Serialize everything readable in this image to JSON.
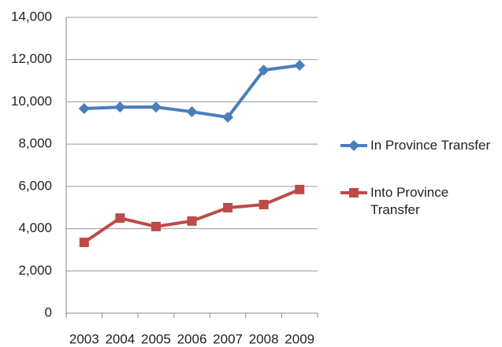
{
  "chart_data": {
    "type": "line",
    "categories": [
      "2003",
      "2004",
      "2005",
      "2006",
      "2007",
      "2008",
      "2009"
    ],
    "series": [
      {
        "name": "In Province Transfer",
        "color": "#4a7ebb",
        "marker": "diamond",
        "values": [
          9680,
          9750,
          9750,
          9530,
          9270,
          11500,
          11730
        ]
      },
      {
        "name": "Into Province Transfer",
        "color": "#be4b48",
        "marker": "square",
        "values": [
          3350,
          4500,
          4100,
          4360,
          4990,
          5140,
          5850
        ]
      }
    ],
    "ylim": [
      0,
      14000
    ],
    "yticks": [
      0,
      {
        "value": 2000,
        "label": "2,000"
      },
      {
        "value": 4000,
        "label": "4,000"
      },
      {
        "value": 6000,
        "label": "6,000"
      },
      {
        "value": 8000,
        "label": "8,000"
      },
      {
        "value": 10000,
        "label": "10,000"
      },
      {
        "value": 12000,
        "label": "12,000"
      },
      {
        "value": 14000,
        "label": "14,000"
      }
    ],
    "grid": true,
    "legend": "right"
  }
}
